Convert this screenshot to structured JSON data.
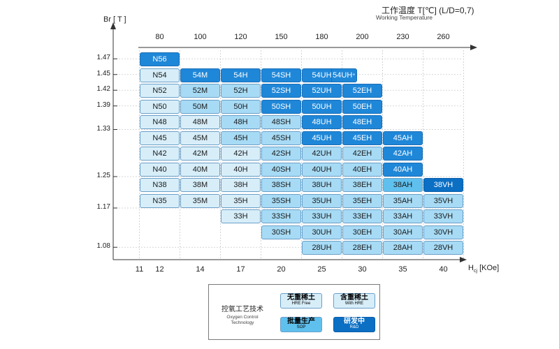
{
  "chart_data": {
    "type": "table",
    "title": "工作温度 T[℃] (L/D=0,7)",
    "subtitle": "Working Temperature",
    "ylabel": "Br [ T ]",
    "xlabel_main": "H",
    "xlabel_sub": "cj",
    "xlabel_unit": " [KOe]",
    "temperature_labels": [
      "80",
      "100",
      "120",
      "150",
      "180",
      "200",
      "230",
      "260"
    ],
    "hcj_labels": [
      {
        "text": "11",
        "col": -0.5
      },
      {
        "text": "12",
        "col": 0
      },
      {
        "text": "14",
        "col": 1
      },
      {
        "text": "17",
        "col": 2
      },
      {
        "text": "20",
        "col": 3
      },
      {
        "text": "25",
        "col": 4
      },
      {
        "text": "30",
        "col": 5
      },
      {
        "text": "35",
        "col": 6
      },
      {
        "text": "40",
        "col": 7
      }
    ],
    "br_labels": [
      {
        "text": "1.47",
        "row": 0.5
      },
      {
        "text": "1.45",
        "row": 1.5
      },
      {
        "text": "1.42",
        "row": 2.5
      },
      {
        "text": "1.39",
        "row": 3.5
      },
      {
        "text": "1.33",
        "row": 5
      },
      {
        "text": "1.25",
        "row": 8
      },
      {
        "text": "1.17",
        "row": 10
      },
      {
        "text": "1.08",
        "row": 12.5
      }
    ],
    "grades": [
      {
        "text": "N56",
        "col": 0,
        "row": 0,
        "tone": 4
      },
      {
        "text": "N54",
        "col": 0,
        "row": 1,
        "tone": 1
      },
      {
        "text": "N52",
        "col": 0,
        "row": 2,
        "tone": 1
      },
      {
        "text": "N50",
        "col": 0,
        "row": 3,
        "tone": 1
      },
      {
        "text": "N48",
        "col": 0,
        "row": 4,
        "tone": 1
      },
      {
        "text": "N45",
        "col": 0,
        "row": 5,
        "tone": 1
      },
      {
        "text": "N42",
        "col": 0,
        "row": 6,
        "tone": 1
      },
      {
        "text": "N40",
        "col": 0,
        "row": 7,
        "tone": 1
      },
      {
        "text": "N38",
        "col": 0,
        "row": 8,
        "tone": 1
      },
      {
        "text": "N35",
        "col": 0,
        "row": 9,
        "tone": 1
      },
      {
        "text": "54M",
        "col": 1,
        "row": 1,
        "tone": 4
      },
      {
        "text": "52M",
        "col": 1,
        "row": 2,
        "tone": 2
      },
      {
        "text": "50M",
        "col": 1,
        "row": 3,
        "tone": 2
      },
      {
        "text": "48M",
        "col": 1,
        "row": 4,
        "tone": 1
      },
      {
        "text": "45M",
        "col": 1,
        "row": 5,
        "tone": 1
      },
      {
        "text": "42M",
        "col": 1,
        "row": 6,
        "tone": 1
      },
      {
        "text": "40M",
        "col": 1,
        "row": 7,
        "tone": 1
      },
      {
        "text": "38M",
        "col": 1,
        "row": 8,
        "tone": 1
      },
      {
        "text": "35M",
        "col": 1,
        "row": 9,
        "tone": 1
      },
      {
        "text": "54H",
        "col": 2,
        "row": 1,
        "tone": 4
      },
      {
        "text": "52H",
        "col": 2,
        "row": 2,
        "tone": 2
      },
      {
        "text": "50H",
        "col": 2,
        "row": 3,
        "tone": 2
      },
      {
        "text": "48H",
        "col": 2,
        "row": 4,
        "tone": 2
      },
      {
        "text": "45H",
        "col": 2,
        "row": 5,
        "tone": 2
      },
      {
        "text": "42H",
        "col": 2,
        "row": 6,
        "tone": 1
      },
      {
        "text": "40H",
        "col": 2,
        "row": 7,
        "tone": 1
      },
      {
        "text": "38H",
        "col": 2,
        "row": 8,
        "tone": 1
      },
      {
        "text": "35H",
        "col": 2,
        "row": 9,
        "tone": 1
      },
      {
        "text": "33H",
        "col": 2,
        "row": 10,
        "tone": 1
      },
      {
        "text": "54SH",
        "col": 3,
        "row": 1,
        "tone": 4
      },
      {
        "text": "52SH",
        "col": 3,
        "row": 2,
        "tone": 4
      },
      {
        "text": "50SH",
        "col": 3,
        "row": 3,
        "tone": 4
      },
      {
        "text": "48SH",
        "col": 3,
        "row": 4,
        "tone": 2
      },
      {
        "text": "45SH",
        "col": 3,
        "row": 5,
        "tone": 2
      },
      {
        "text": "42SH",
        "col": 3,
        "row": 6,
        "tone": 2
      },
      {
        "text": "40SH",
        "col": 3,
        "row": 7,
        "tone": 2
      },
      {
        "text": "38SH",
        "col": 3,
        "row": 8,
        "tone": 2
      },
      {
        "text": "35SH",
        "col": 3,
        "row": 9,
        "tone": 2
      },
      {
        "text": "33SH",
        "col": 3,
        "row": 10,
        "tone": 2
      },
      {
        "text": "30SH",
        "col": 3,
        "row": 11,
        "tone": 2
      },
      {
        "text": "54UH",
        "col": 4,
        "row": 1,
        "tone": 4
      },
      {
        "text": "52UH",
        "col": 4,
        "row": 2,
        "tone": 4
      },
      {
        "text": "50UH",
        "col": 4,
        "row": 3,
        "tone": 4
      },
      {
        "text": "48UH",
        "col": 4,
        "row": 4,
        "tone": 4
      },
      {
        "text": "45UH",
        "col": 4,
        "row": 5,
        "tone": 4
      },
      {
        "text": "42UH",
        "col": 4,
        "row": 6,
        "tone": 2
      },
      {
        "text": "40UH",
        "col": 4,
        "row": 7,
        "tone": 2
      },
      {
        "text": "38UH",
        "col": 4,
        "row": 8,
        "tone": 2
      },
      {
        "text": "35UH",
        "col": 4,
        "row": 9,
        "tone": 2
      },
      {
        "text": "33UH",
        "col": 4,
        "row": 10,
        "tone": 2
      },
      {
        "text": "30UH",
        "col": 4,
        "row": 11,
        "tone": 2
      },
      {
        "text": "28UH",
        "col": 4,
        "row": 12,
        "tone": 2
      },
      {
        "text": "54UH",
        "sup": "+",
        "col": 4.72,
        "row": 1,
        "tone": 4,
        "narrow": true
      },
      {
        "text": "52EH",
        "col": 5,
        "row": 2,
        "tone": 4
      },
      {
        "text": "50EH",
        "col": 5,
        "row": 3,
        "tone": 4
      },
      {
        "text": "48EH",
        "col": 5,
        "row": 4,
        "tone": 4
      },
      {
        "text": "45EH",
        "col": 5,
        "row": 5,
        "tone": 4
      },
      {
        "text": "42EH",
        "col": 5,
        "row": 6,
        "tone": 2
      },
      {
        "text": "40EH",
        "col": 5,
        "row": 7,
        "tone": 2
      },
      {
        "text": "38EH",
        "col": 5,
        "row": 8,
        "tone": 2
      },
      {
        "text": "35EH",
        "col": 5,
        "row": 9,
        "tone": 2
      },
      {
        "text": "33EH",
        "col": 5,
        "row": 10,
        "tone": 2
      },
      {
        "text": "30EH",
        "col": 5,
        "row": 11,
        "tone": 2
      },
      {
        "text": "28EH",
        "col": 5,
        "row": 12,
        "tone": 2
      },
      {
        "text": "45AH",
        "col": 6,
        "row": 5,
        "tone": 4
      },
      {
        "text": "42AH",
        "col": 6,
        "row": 6,
        "tone": 4
      },
      {
        "text": "40AH",
        "col": 6,
        "row": 7,
        "tone": 4
      },
      {
        "text": "38AH",
        "col": 6,
        "row": 8,
        "tone": 3
      },
      {
        "text": "35AH",
        "col": 6,
        "row": 9,
        "tone": 2
      },
      {
        "text": "33AH",
        "col": 6,
        "row": 10,
        "tone": 2
      },
      {
        "text": "30AH",
        "col": 6,
        "row": 11,
        "tone": 2
      },
      {
        "text": "28AH",
        "col": 6,
        "row": 12,
        "tone": 2
      },
      {
        "text": "38VH",
        "col": 7,
        "row": 8,
        "tone": 5
      },
      {
        "text": "35VH",
        "col": 7,
        "row": 9,
        "tone": 2
      },
      {
        "text": "33VH",
        "col": 7,
        "row": 10,
        "tone": 2
      },
      {
        "text": "30VH",
        "col": 7,
        "row": 11,
        "tone": 2
      },
      {
        "text": "28VH",
        "col": 7,
        "row": 12,
        "tone": 2
      }
    ]
  },
  "legend": {
    "title": "控氧工艺技术",
    "subtitle_line1": "Oxygen Control",
    "subtitle_line2": "Technology",
    "items": [
      {
        "cn": "无重稀土",
        "en": "HRE Free",
        "tone": 1
      },
      {
        "cn": "含重稀土",
        "en": "With HRE",
        "tone": 1
      },
      {
        "cn": "批量生产",
        "en": "SOP",
        "tone": 3
      },
      {
        "cn": "研发中",
        "en": "R&D",
        "tone": 5
      }
    ]
  }
}
